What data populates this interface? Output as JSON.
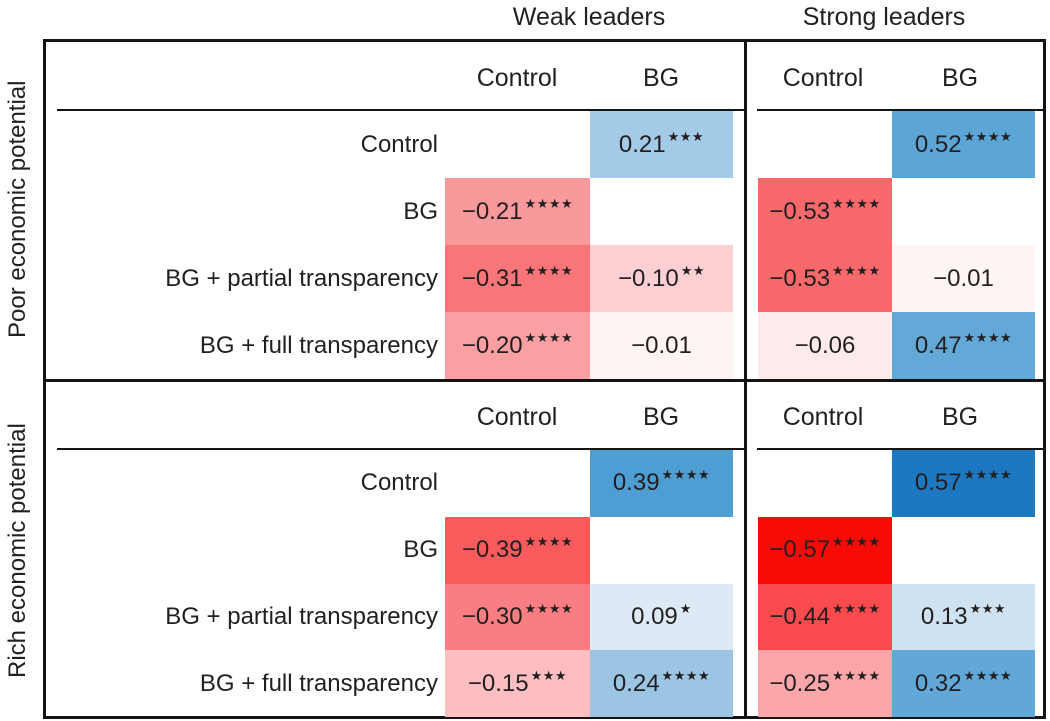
{
  "chart_data": {
    "type": "heatmap",
    "title": "",
    "column_groups": [
      "Weak leaders",
      "Strong leaders"
    ],
    "row_groups": [
      "Poor economic potential",
      "Rich economic potential"
    ],
    "columns": [
      "Control",
      "BG"
    ],
    "rows": [
      "Control",
      "BG",
      "BG + partial transparency",
      "BG + full transparency"
    ],
    "legend_position": "none",
    "colormap_note": "negative effects shaded red, positive effects shaded blue; shade intensity scales with magnitude; stars mark significance level",
    "quadrants": [
      {
        "row_group": "Poor economic potential",
        "column_group": "Weak leaders",
        "cells": [
          {
            "row": "Control",
            "column": "BG",
            "value": 0.21,
            "label": "0.21",
            "stars": 3,
            "color": "#a3cbe8"
          },
          {
            "row": "BG",
            "column": "Control",
            "value": -0.21,
            "label": "−0.21",
            "stars": 4,
            "color": "#fa999c"
          },
          {
            "row": "BG + partial transparency",
            "column": "Control",
            "value": -0.31,
            "label": "−0.31",
            "stars": 4,
            "color": "#f87579"
          },
          {
            "row": "BG + partial transparency",
            "column": "BG",
            "value": -0.1,
            "label": "−0.10",
            "stars": 2,
            "color": "#fcd0d2"
          },
          {
            "row": "BG + full transparency",
            "column": "Control",
            "value": -0.2,
            "label": "−0.20",
            "stars": 4,
            "color": "#faa0a3"
          },
          {
            "row": "BG + full transparency",
            "column": "BG",
            "value": -0.01,
            "label": "−0.01",
            "stars": 0,
            "color": "#fef4f4"
          }
        ]
      },
      {
        "row_group": "Poor economic potential",
        "column_group": "Strong leaders",
        "cells": [
          {
            "row": "Control",
            "column": "BG",
            "value": 0.52,
            "label": "0.52",
            "stars": 4,
            "color": "#5ba5d7"
          },
          {
            "row": "BG",
            "column": "Control",
            "value": -0.53,
            "label": "−0.53",
            "stars": 4,
            "color": "#f9696c"
          },
          {
            "row": "BG + partial transparency",
            "column": "Control",
            "value": -0.53,
            "label": "−0.53",
            "stars": 4,
            "color": "#f9696c"
          },
          {
            "row": "BG + partial transparency",
            "column": "BG",
            "value": -0.01,
            "label": "−0.01",
            "stars": 0,
            "color": "#fdf4f4"
          },
          {
            "row": "BG + full transparency",
            "column": "Control",
            "value": -0.06,
            "label": "−0.06",
            "stars": 0,
            "color": "#fdebeb"
          },
          {
            "row": "BG + full transparency",
            "column": "BG",
            "value": 0.47,
            "label": "0.47",
            "stars": 4,
            "color": "#62a9d8"
          }
        ]
      },
      {
        "row_group": "Rich economic potential",
        "column_group": "Weak leaders",
        "cells": [
          {
            "row": "Control",
            "column": "BG",
            "value": 0.39,
            "label": "0.39",
            "stars": 4,
            "color": "#4f9ed3"
          },
          {
            "row": "BG",
            "column": "Control",
            "value": -0.39,
            "label": "−0.39",
            "stars": 4,
            "color": "#f95b5d"
          },
          {
            "row": "BG + partial transparency",
            "column": "Control",
            "value": -0.3,
            "label": "−0.30",
            "stars": 4,
            "color": "#f97e81"
          },
          {
            "row": "BG + partial transparency",
            "column": "BG",
            "value": 0.09,
            "label": "0.09",
            "stars": 1,
            "color": "#ddeaf6"
          },
          {
            "row": "BG + full transparency",
            "column": "Control",
            "value": -0.15,
            "label": "−0.15",
            "stars": 3,
            "color": "#fcbec1"
          },
          {
            "row": "BG + full transparency",
            "column": "BG",
            "value": 0.24,
            "label": "0.24",
            "stars": 4,
            "color": "#9cc5e3"
          }
        ]
      },
      {
        "row_group": "Rich economic potential",
        "column_group": "Strong leaders",
        "cells": [
          {
            "row": "Control",
            "column": "BG",
            "value": 0.57,
            "label": "0.57",
            "stars": 4,
            "color": "#1d78c2"
          },
          {
            "row": "BG",
            "column": "Control",
            "value": -0.57,
            "label": "−0.57",
            "stars": 4,
            "color": "#fa0a06"
          },
          {
            "row": "BG + partial transparency",
            "column": "Control",
            "value": -0.44,
            "label": "−0.44",
            "stars": 4,
            "color": "#f94b4d"
          },
          {
            "row": "BG + partial transparency",
            "column": "BG",
            "value": 0.13,
            "label": "0.13",
            "stars": 3,
            "color": "#cfe2f2"
          },
          {
            "row": "BG + full transparency",
            "column": "Control",
            "value": -0.25,
            "label": "−0.25",
            "stars": 4,
            "color": "#fba7aa"
          },
          {
            "row": "BG + full transparency",
            "column": "BG",
            "value": 0.32,
            "label": "0.32",
            "stars": 4,
            "color": "#61a7d8"
          }
        ]
      }
    ],
    "line_color": "#141414",
    "text_color": "#231f20"
  }
}
